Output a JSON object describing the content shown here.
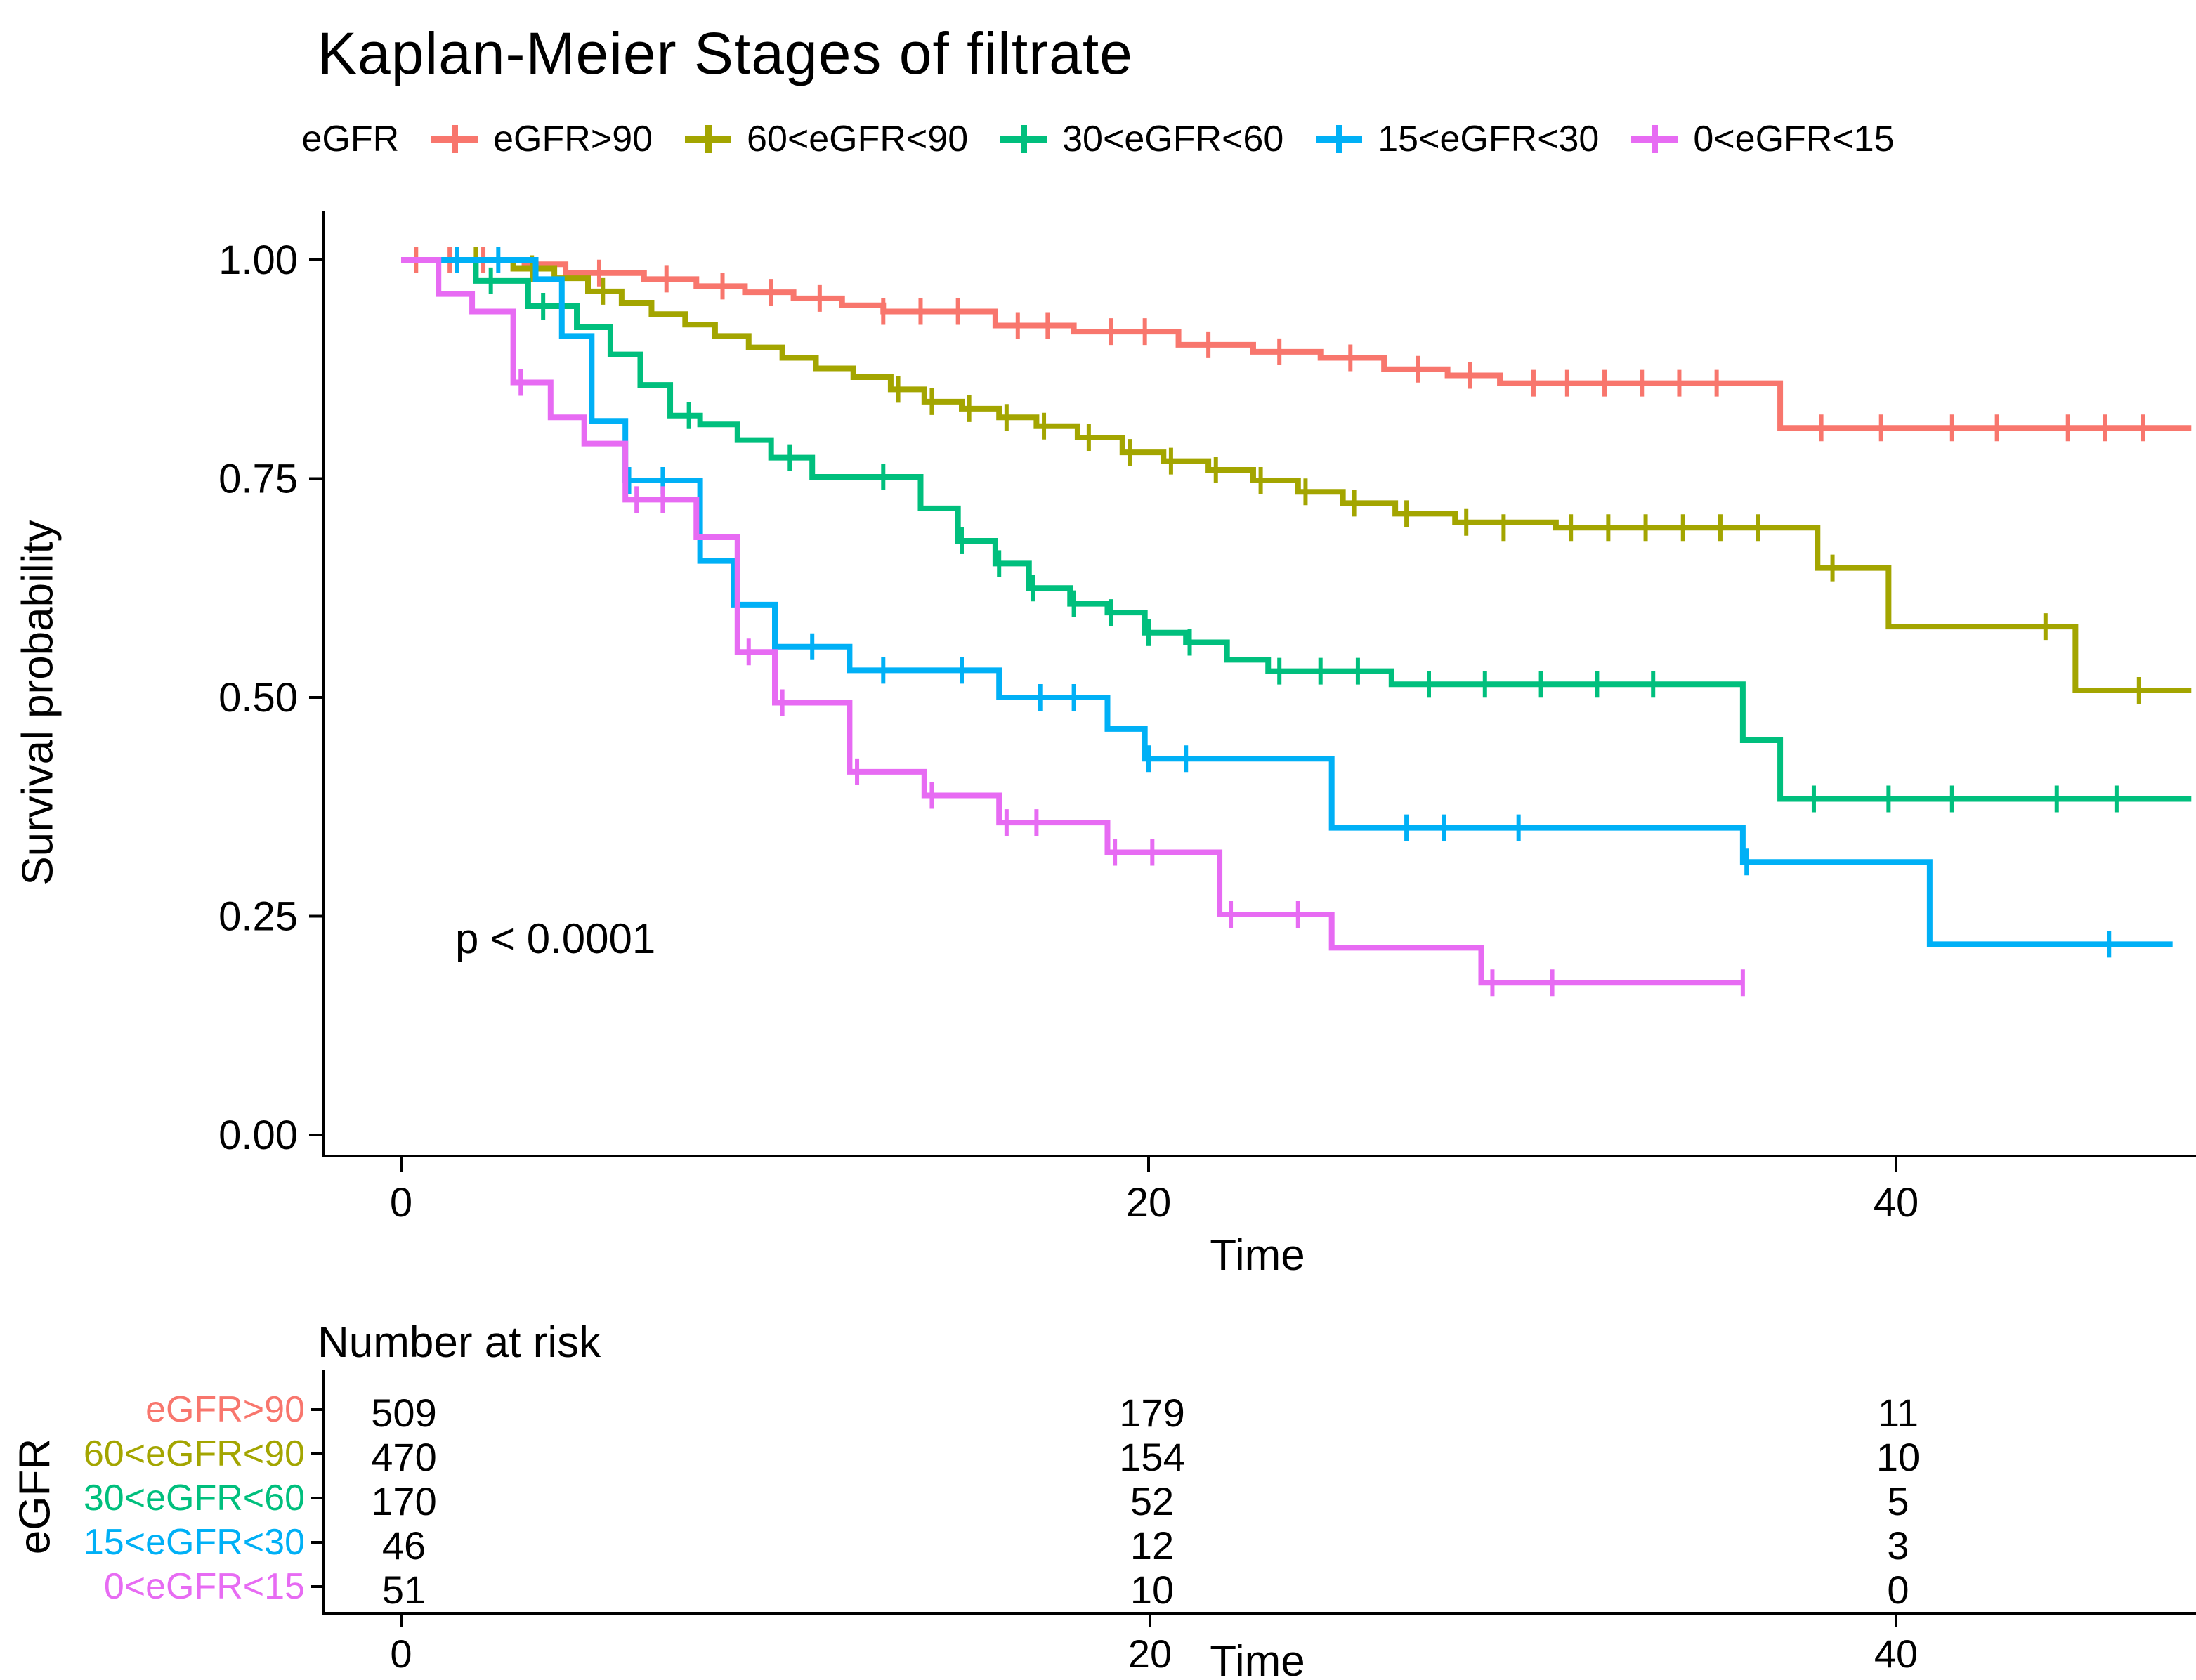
{
  "title": "Kaplan-Meier Stages of filtrate",
  "legend": {
    "label": "eGFR"
  },
  "pvalue": "p < 0.0001",
  "ylabel": "Survival probability",
  "xlabel": "Time",
  "risk_table": {
    "title": "Number at risk",
    "group_label": "eGFR",
    "xlabel": "Time"
  },
  "chart_data": {
    "type": "line",
    "subtype": "kaplan-meier-step",
    "title": "Kaplan-Meier Stages of filtrate",
    "xlabel": "Time",
    "ylabel": "Survival probability",
    "xlim": [
      0,
      47.9
    ],
    "ylim": [
      0.0,
      1.0
    ],
    "grid": false,
    "legend_position": "top",
    "pvalue": "p < 0.0001",
    "xticks": [
      {
        "v": 0,
        "label": "0"
      },
      {
        "v": 20,
        "label": "20"
      },
      {
        "v": 40,
        "label": "40"
      }
    ],
    "yticks": [
      {
        "v": 1.0,
        "label": "1.00"
      },
      {
        "v": 0.75,
        "label": "0.75"
      },
      {
        "v": 0.5,
        "label": "0.50"
      },
      {
        "v": 0.25,
        "label": "0.25"
      },
      {
        "v": 0.0,
        "label": "0.00"
      }
    ],
    "series": [
      {
        "name": "eGFR>90",
        "color": "#F8766D",
        "risk": [
          509,
          179,
          11
        ],
        "points": [
          [
            0,
            1.0
          ],
          [
            3.3,
            0.995
          ],
          [
            4.4,
            0.985
          ],
          [
            6.5,
            0.978
          ],
          [
            7.9,
            0.97
          ],
          [
            9.2,
            0.963
          ],
          [
            10.5,
            0.956
          ],
          [
            11.8,
            0.948
          ],
          [
            12.9,
            0.941
          ],
          [
            15.9,
            0.925
          ],
          [
            18.0,
            0.918
          ],
          [
            20.8,
            0.903
          ],
          [
            22.8,
            0.895
          ],
          [
            24.6,
            0.888
          ],
          [
            26.3,
            0.875
          ],
          [
            28.0,
            0.868
          ],
          [
            29.4,
            0.859
          ],
          [
            36.9,
            0.808
          ],
          [
            47.9,
            0.808
          ]
        ],
        "censors": [
          [
            0.4,
            1.0
          ],
          [
            1.3,
            1.0
          ],
          [
            2.2,
            1.0
          ],
          [
            5.3,
            0.985
          ],
          [
            7.1,
            0.978
          ],
          [
            8.6,
            0.97
          ],
          [
            9.9,
            0.963
          ],
          [
            11.2,
            0.956
          ],
          [
            12.9,
            0.941
          ],
          [
            13.9,
            0.941
          ],
          [
            14.9,
            0.941
          ],
          [
            16.5,
            0.925
          ],
          [
            17.3,
            0.925
          ],
          [
            19.0,
            0.918
          ],
          [
            19.9,
            0.918
          ],
          [
            21.6,
            0.903
          ],
          [
            23.5,
            0.895
          ],
          [
            25.4,
            0.888
          ],
          [
            27.2,
            0.875
          ],
          [
            28.6,
            0.868
          ],
          [
            30.3,
            0.859
          ],
          [
            31.2,
            0.859
          ],
          [
            32.2,
            0.859
          ],
          [
            33.2,
            0.859
          ],
          [
            34.2,
            0.859
          ],
          [
            35.2,
            0.859
          ],
          [
            38.0,
            0.808
          ],
          [
            39.6,
            0.808
          ],
          [
            41.5,
            0.808
          ],
          [
            42.7,
            0.808
          ],
          [
            44.6,
            0.808
          ],
          [
            45.6,
            0.808
          ],
          [
            46.6,
            0.808
          ]
        ]
      },
      {
        "name": "60<eGFR<90",
        "color": "#A3A500",
        "risk": [
          470,
          154,
          10
        ],
        "points": [
          [
            0,
            1.0
          ],
          [
            3.0,
            0.99
          ],
          [
            4.1,
            0.979
          ],
          [
            5.0,
            0.964
          ],
          [
            5.9,
            0.951
          ],
          [
            6.7,
            0.938
          ],
          [
            7.6,
            0.926
          ],
          [
            8.4,
            0.913
          ],
          [
            9.3,
            0.9
          ],
          [
            10.2,
            0.888
          ],
          [
            11.1,
            0.876
          ],
          [
            12.1,
            0.866
          ],
          [
            13.1,
            0.852
          ],
          [
            14.0,
            0.838
          ],
          [
            15.0,
            0.83
          ],
          [
            16.0,
            0.82
          ],
          [
            17.0,
            0.81
          ],
          [
            18.1,
            0.797
          ],
          [
            19.3,
            0.78
          ],
          [
            20.4,
            0.77
          ],
          [
            21.6,
            0.76
          ],
          [
            22.8,
            0.748
          ],
          [
            24.0,
            0.735
          ],
          [
            25.2,
            0.722
          ],
          [
            26.6,
            0.71
          ],
          [
            28.2,
            0.7
          ],
          [
            30.9,
            0.694
          ],
          [
            37.9,
            0.648
          ],
          [
            39.8,
            0.581
          ],
          [
            44.8,
            0.508
          ],
          [
            47.9,
            0.508
          ]
        ],
        "censors": [
          [
            2.0,
            1.0
          ],
          [
            3.5,
            0.99
          ],
          [
            5.4,
            0.964
          ],
          [
            13.3,
            0.852
          ],
          [
            14.2,
            0.838
          ],
          [
            15.2,
            0.83
          ],
          [
            16.2,
            0.82
          ],
          [
            17.2,
            0.81
          ],
          [
            18.4,
            0.797
          ],
          [
            19.5,
            0.78
          ],
          [
            20.6,
            0.77
          ],
          [
            21.8,
            0.76
          ],
          [
            23.0,
            0.748
          ],
          [
            24.2,
            0.735
          ],
          [
            25.5,
            0.722
          ],
          [
            26.9,
            0.71
          ],
          [
            28.5,
            0.7
          ],
          [
            29.5,
            0.694
          ],
          [
            31.3,
            0.694
          ],
          [
            32.3,
            0.694
          ],
          [
            33.3,
            0.694
          ],
          [
            34.3,
            0.694
          ],
          [
            35.3,
            0.694
          ],
          [
            36.3,
            0.694
          ],
          [
            38.3,
            0.648
          ],
          [
            44.0,
            0.581
          ],
          [
            46.5,
            0.508
          ]
        ]
      },
      {
        "name": "30<eGFR<60",
        "color": "#00BF7D",
        "risk": [
          170,
          52,
          5
        ],
        "points": [
          [
            0,
            1.0
          ],
          [
            2.0,
            0.976
          ],
          [
            3.4,
            0.947
          ],
          [
            4.7,
            0.923
          ],
          [
            5.6,
            0.892
          ],
          [
            6.4,
            0.857
          ],
          [
            7.2,
            0.822
          ],
          [
            8.0,
            0.812
          ],
          [
            9.0,
            0.794
          ],
          [
            9.9,
            0.774
          ],
          [
            11.0,
            0.752
          ],
          [
            13.9,
            0.716
          ],
          [
            14.9,
            0.679
          ],
          [
            15.9,
            0.653
          ],
          [
            16.8,
            0.625
          ],
          [
            17.9,
            0.607
          ],
          [
            18.9,
            0.597
          ],
          [
            19.9,
            0.574
          ],
          [
            21.0,
            0.563
          ],
          [
            22.1,
            0.543
          ],
          [
            23.2,
            0.53
          ],
          [
            26.5,
            0.515
          ],
          [
            35.9,
            0.451
          ],
          [
            36.9,
            0.384
          ],
          [
            47.9,
            0.384
          ]
        ],
        "censors": [
          [
            2.4,
            0.976
          ],
          [
            3.8,
            0.947
          ],
          [
            7.7,
            0.822
          ],
          [
            10.4,
            0.774
          ],
          [
            12.9,
            0.752
          ],
          [
            15.0,
            0.679
          ],
          [
            16.0,
            0.653
          ],
          [
            16.9,
            0.625
          ],
          [
            18.0,
            0.607
          ],
          [
            19.0,
            0.597
          ],
          [
            20.0,
            0.574
          ],
          [
            21.1,
            0.563
          ],
          [
            23.5,
            0.53
          ],
          [
            24.6,
            0.53
          ],
          [
            25.6,
            0.53
          ],
          [
            27.5,
            0.515
          ],
          [
            29.0,
            0.515
          ],
          [
            30.5,
            0.515
          ],
          [
            32.0,
            0.515
          ],
          [
            33.5,
            0.515
          ],
          [
            37.8,
            0.384
          ],
          [
            39.8,
            0.384
          ],
          [
            41.5,
            0.384
          ],
          [
            44.3,
            0.384
          ],
          [
            45.9,
            0.384
          ]
        ]
      },
      {
        "name": "15<eGFR<30",
        "color": "#00B0F6",
        "risk": [
          46,
          12,
          3
        ],
        "points": [
          [
            0,
            1.0
          ],
          [
            3.6,
            0.978
          ],
          [
            4.3,
            0.913
          ],
          [
            5.1,
            0.816
          ],
          [
            6.0,
            0.748
          ],
          [
            8.0,
            0.656
          ],
          [
            8.9,
            0.606
          ],
          [
            10.0,
            0.558
          ],
          [
            12.0,
            0.531
          ],
          [
            16.0,
            0.5
          ],
          [
            18.9,
            0.464
          ],
          [
            19.9,
            0.43
          ],
          [
            24.9,
            0.351
          ],
          [
            35.9,
            0.312
          ],
          [
            40.9,
            0.218
          ],
          [
            47.4,
            0.218
          ]
        ],
        "censors": [
          [
            1.5,
            1.0
          ],
          [
            2.6,
            1.0
          ],
          [
            6.1,
            0.748
          ],
          [
            7.0,
            0.748
          ],
          [
            9.0,
            0.606
          ],
          [
            11.0,
            0.558
          ],
          [
            12.9,
            0.531
          ],
          [
            15.0,
            0.531
          ],
          [
            17.1,
            0.5
          ],
          [
            18.0,
            0.5
          ],
          [
            20.0,
            0.43
          ],
          [
            21.0,
            0.43
          ],
          [
            26.9,
            0.351
          ],
          [
            27.9,
            0.351
          ],
          [
            29.9,
            0.351
          ],
          [
            36.0,
            0.312
          ],
          [
            45.7,
            0.218
          ]
        ]
      },
      {
        "name": "0<eGFR<15",
        "color": "#E76BF3",
        "risk": [
          51,
          10,
          0
        ],
        "points": [
          [
            0,
            1.0
          ],
          [
            1.0,
            0.961
          ],
          [
            1.9,
            0.941
          ],
          [
            3.0,
            0.86
          ],
          [
            4.0,
            0.82
          ],
          [
            4.9,
            0.79
          ],
          [
            6.0,
            0.726
          ],
          [
            7.9,
            0.683
          ],
          [
            9.0,
            0.552
          ],
          [
            10.0,
            0.494
          ],
          [
            12.0,
            0.415
          ],
          [
            14.0,
            0.388
          ],
          [
            16.0,
            0.357
          ],
          [
            18.9,
            0.323
          ],
          [
            21.9,
            0.252
          ],
          [
            24.9,
            0.214
          ],
          [
            28.9,
            0.174
          ],
          [
            35.9,
            0.174
          ]
        ],
        "censors": [
          [
            3.2,
            0.86
          ],
          [
            6.3,
            0.726
          ],
          [
            7.0,
            0.726
          ],
          [
            9.3,
            0.552
          ],
          [
            10.2,
            0.494
          ],
          [
            12.2,
            0.415
          ],
          [
            14.2,
            0.388
          ],
          [
            16.2,
            0.357
          ],
          [
            17.0,
            0.357
          ],
          [
            19.1,
            0.323
          ],
          [
            20.1,
            0.323
          ],
          [
            22.2,
            0.252
          ],
          [
            24.0,
            0.252
          ],
          [
            29.2,
            0.174
          ],
          [
            30.8,
            0.174
          ],
          [
            35.9,
            0.174
          ]
        ]
      }
    ]
  }
}
